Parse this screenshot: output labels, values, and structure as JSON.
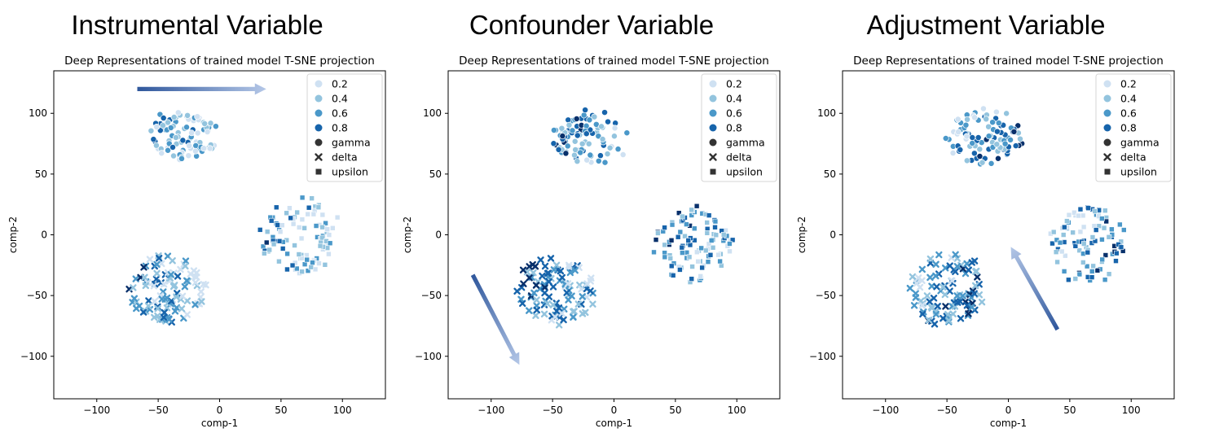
{
  "colors": {
    "0.2": "#cfe1f2",
    "0.4": "#93c4de",
    "0.6": "#4a98c9",
    "0.8": "#1764ab",
    "0.9": "#08306b",
    "arrow_dark": "#2f579c",
    "arrow_light": "#b4c7e7"
  },
  "panels": [
    {
      "heading": "Instrumental Variable",
      "chart_data": {
        "type": "scatter",
        "title": "Deep Representations of trained model T-SNE projection",
        "xlabel": "comp-1",
        "ylabel": "comp-2",
        "xlim": [
          -135,
          135
        ],
        "ylim": [
          -135,
          135
        ],
        "xticks": [
          -100,
          -50,
          0,
          50,
          100
        ],
        "yticks": [
          -100,
          -50,
          0,
          50,
          100
        ],
        "grid": false,
        "legend_placement": "top-right",
        "hue_legend": [
          "0.2",
          "0.4",
          "0.6",
          "0.8"
        ],
        "style_legend": [
          "gamma",
          "delta",
          "upsilon"
        ],
        "color_mode": "x",
        "arrow": {
          "from": [
            -67,
            120
          ],
          "to": [
            38,
            120
          ],
          "description": "gradient arrow, dark to light"
        },
        "clusters": [
          {
            "series": "gamma",
            "marker": "circle",
            "center": [
              -30,
              82
            ],
            "spread": [
              28,
              20
            ],
            "n": 95
          },
          {
            "series": "delta",
            "marker": "cross",
            "center": [
              -43,
              -45
            ],
            "spread": [
              32,
              30
            ],
            "n": 100
          },
          {
            "series": "upsilon",
            "marker": "square",
            "center": [
              65,
              0
            ],
            "spread": [
              33,
              32
            ],
            "n": 100
          }
        ]
      }
    },
    {
      "heading": "Confounder Variable",
      "chart_data": {
        "type": "scatter",
        "title": "Deep Representations of trained model T-SNE projection",
        "xlabel": "comp-1",
        "ylabel": "comp-2",
        "xlim": [
          -135,
          135
        ],
        "ylim": [
          -135,
          135
        ],
        "xticks": [
          -100,
          -50,
          0,
          50,
          100
        ],
        "yticks": [
          -100,
          -50,
          0,
          50,
          100
        ],
        "grid": false,
        "legend_placement": "top-right",
        "hue_legend": [
          "0.2",
          "0.4",
          "0.6",
          "0.8"
        ],
        "style_legend": [
          "gamma",
          "delta",
          "upsilon"
        ],
        "color_mode": "diag",
        "arrow": {
          "from": [
            -115,
            -33
          ],
          "to": [
            -77,
            -107
          ],
          "description": "gradient arrow, dark to light"
        },
        "clusters": [
          {
            "series": "gamma",
            "marker": "circle",
            "center": [
              -20,
              80
            ],
            "spread": [
              30,
              22
            ],
            "n": 95
          },
          {
            "series": "delta",
            "marker": "cross",
            "center": [
              -48,
              -45
            ],
            "spread": [
              32,
              28
            ],
            "n": 100
          },
          {
            "series": "upsilon",
            "marker": "square",
            "center": [
              65,
              -8
            ],
            "spread": [
              32,
              32
            ],
            "n": 100
          }
        ]
      }
    },
    {
      "heading": "Adjustment Variable",
      "chart_data": {
        "type": "scatter",
        "title": "Deep Representations of trained model T-SNE projection",
        "xlabel": "comp-1",
        "ylabel": "comp-2",
        "xlim": [
          -135,
          135
        ],
        "ylim": [
          -135,
          135
        ],
        "xticks": [
          -100,
          -50,
          0,
          50,
          100
        ],
        "yticks": [
          -100,
          -50,
          0,
          50,
          100
        ],
        "grid": false,
        "legend_placement": "top-right",
        "hue_legend": [
          "0.2",
          "0.4",
          "0.6",
          "0.8"
        ],
        "style_legend": [
          "gamma",
          "delta",
          "upsilon"
        ],
        "color_mode": "antidiag",
        "arrow": {
          "from": [
            40,
            -78
          ],
          "to": [
            2,
            -10
          ],
          "description": "gradient arrow, dark to light"
        },
        "clusters": [
          {
            "series": "gamma",
            "marker": "circle",
            "center": [
              -20,
              80
            ],
            "spread": [
              30,
              22
            ],
            "n": 95
          },
          {
            "series": "delta",
            "marker": "cross",
            "center": [
              -50,
              -45
            ],
            "spread": [
              30,
              30
            ],
            "n": 100
          },
          {
            "series": "upsilon",
            "marker": "square",
            "center": [
              65,
              -8
            ],
            "spread": [
              30,
              32
            ],
            "n": 100
          }
        ]
      }
    }
  ]
}
